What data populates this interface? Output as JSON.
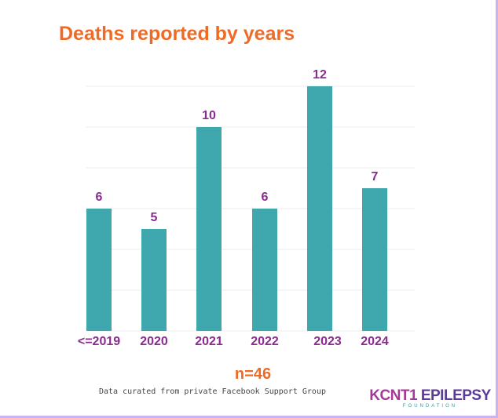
{
  "chart_data": {
    "type": "bar",
    "title": "Deaths reported by years",
    "categories": [
      "<=2019",
      "2020",
      "2021",
      "2022",
      "2023",
      "2024"
    ],
    "values": [
      6,
      5,
      10,
      6,
      12,
      7
    ],
    "xlabel": "",
    "ylabel": "",
    "ylim": [
      0,
      12
    ],
    "grid": true,
    "gridStep": 2,
    "colors": {
      "bar": "#3ea8ae",
      "label": "#8a2b8f",
      "title": "#ef6a25",
      "grid": "#ececec"
    }
  },
  "footer": {
    "n_label": "n=46",
    "note": "Data curated from private Facebook Support Group"
  },
  "logo": {
    "part1": "KCNT1",
    "part2": " EPILEPSY",
    "sub": "FOUNDATION"
  }
}
